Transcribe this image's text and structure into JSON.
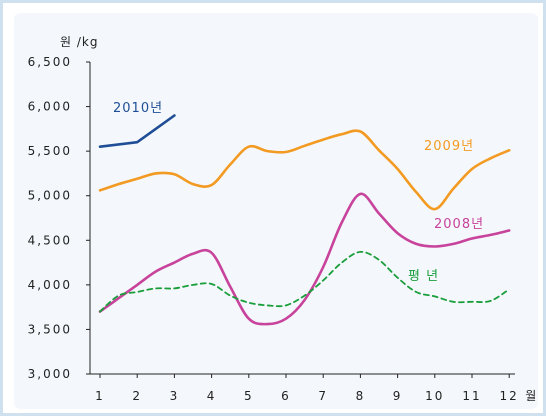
{
  "chart_data": {
    "type": "line",
    "ylabel": "원 /kg",
    "xlabel": "",
    "x_unit_label": "월",
    "x": [
      1,
      2,
      3,
      4,
      5,
      6,
      7,
      8,
      9,
      10,
      11,
      12
    ],
    "x_tick_labels": [
      "1",
      "2",
      "3",
      "4",
      "5",
      "6",
      "7",
      "8",
      "9",
      "10",
      "11",
      "12"
    ],
    "ylim": [
      3000,
      6500
    ],
    "y_ticks": [
      3000,
      3500,
      4000,
      4500,
      5000,
      5500,
      6000,
      6500
    ],
    "y_tick_labels": [
      "3,000",
      "3,500",
      "4,000",
      "4,500",
      "5,000",
      "5,500",
      "6,000",
      "6,500"
    ],
    "grid": false,
    "series": [
      {
        "name": "2010년",
        "color": "#1f4e96",
        "dash": "solid",
        "x": [
          1,
          2,
          3
        ],
        "values": [
          5550,
          5600,
          5900
        ]
      },
      {
        "name": "2009년",
        "color": "#f39a22",
        "dash": "solid",
        "x": [
          1,
          1.5,
          2,
          2.5,
          3,
          3.5,
          4,
          4.5,
          5,
          5.5,
          6,
          6.5,
          7,
          7.5,
          8,
          8.5,
          9,
          9.5,
          10,
          10.5,
          11,
          11.5,
          12
        ],
        "values": [
          5060,
          5130,
          5190,
          5250,
          5240,
          5130,
          5120,
          5350,
          5550,
          5500,
          5490,
          5560,
          5630,
          5690,
          5720,
          5510,
          5300,
          5040,
          4850,
          5080,
          5300,
          5420,
          5510
        ]
      },
      {
        "name": "2008년",
        "color": "#c8439b",
        "dash": "solid",
        "x": [
          1,
          1.5,
          2,
          2.5,
          3,
          3.5,
          4,
          4.5,
          5,
          5.5,
          6,
          6.5,
          7,
          7.5,
          8,
          8.5,
          9,
          9.5,
          10,
          10.5,
          11,
          11.5,
          12
        ],
        "values": [
          3700,
          3850,
          4000,
          4150,
          4250,
          4350,
          4360,
          3980,
          3620,
          3560,
          3620,
          3830,
          4200,
          4700,
          5020,
          4800,
          4580,
          4460,
          4430,
          4460,
          4520,
          4560,
          4610
        ]
      },
      {
        "name": "평 년",
        "color": "#1a9e3b",
        "dash": "dashed",
        "x": [
          1,
          1.5,
          2,
          2.5,
          3,
          3.5,
          4,
          4.5,
          5,
          5.5,
          6,
          6.5,
          7,
          7.5,
          8,
          8.5,
          9,
          9.5,
          10,
          10.5,
          11,
          11.5,
          12
        ],
        "values": [
          3700,
          3880,
          3920,
          3960,
          3960,
          4000,
          4010,
          3880,
          3800,
          3770,
          3770,
          3880,
          4050,
          4250,
          4370,
          4280,
          4080,
          3920,
          3870,
          3810,
          3810,
          3820,
          3950
        ]
      }
    ]
  }
}
